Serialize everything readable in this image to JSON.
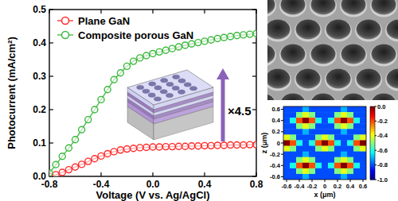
{
  "chart_data": [
    {
      "type": "line",
      "x_label": "Voltage (V vs. Ag/AgCl)",
      "y_label": "Photocurrent (mA/cm²)",
      "x": [
        -0.8,
        -0.75,
        -0.7,
        -0.65,
        -0.6,
        -0.55,
        -0.5,
        -0.45,
        -0.4,
        -0.35,
        -0.3,
        -0.25,
        -0.2,
        -0.15,
        -0.1,
        -0.05,
        0,
        0.05,
        0.1,
        0.15,
        0.2,
        0.25,
        0.3,
        0.35,
        0.4,
        0.45,
        0.5,
        0.55,
        0.6,
        0.65,
        0.7,
        0.75,
        0.8
      ],
      "series": [
        {
          "name": "Plane GaN",
          "color": "#ff2a2a",
          "marker": "circle",
          "line_style": "solid",
          "values": [
            0.0,
            0.005,
            0.012,
            0.02,
            0.028,
            0.036,
            0.045,
            0.053,
            0.061,
            0.068,
            0.074,
            0.079,
            0.082,
            0.084,
            0.086,
            0.087,
            0.088,
            0.088,
            0.089,
            0.089,
            0.09,
            0.09,
            0.091,
            0.091,
            0.092,
            0.092,
            0.093,
            0.093,
            0.094,
            0.094,
            0.094,
            0.095,
            0.095
          ]
        },
        {
          "name": "Composite porous GaN",
          "color": "#3cb83c",
          "marker": "circle",
          "line_style": "solid",
          "values": [
            0.01,
            0.035,
            0.06,
            0.085,
            0.11,
            0.14,
            0.17,
            0.2,
            0.23,
            0.26,
            0.29,
            0.31,
            0.33,
            0.345,
            0.355,
            0.362,
            0.368,
            0.373,
            0.378,
            0.383,
            0.388,
            0.393,
            0.397,
            0.401,
            0.405,
            0.409,
            0.413,
            0.416,
            0.419,
            0.422,
            0.424,
            0.426,
            0.428
          ]
        }
      ],
      "xlim": [
        -0.8,
        0.8
      ],
      "ylim": [
        0,
        0.5
      ],
      "xticks": [
        -0.8,
        -0.4,
        {
          "value": 0,
          "label": "0.0"
        },
        0.4,
        0.8
      ],
      "yticks": [
        {
          "value": 0,
          "label": "0.0"
        },
        0.1,
        0.2,
        0.3,
        0.4,
        0.5
      ],
      "grid": false,
      "legend": "upper left",
      "annotation": "×4.5"
    },
    {
      "type": "heatmap",
      "x_label": "x (μm)",
      "y_label": "z (μm)",
      "x": [
        -0.6,
        -0.5,
        -0.4,
        -0.3,
        -0.2,
        -0.1,
        0,
        0.1,
        0.2,
        0.3,
        0.4,
        0.5,
        0.6
      ],
      "y": [
        0.6,
        0.5,
        0.4,
        0.3,
        0.2,
        0.1,
        0,
        -0.1,
        -0.2,
        -0.3,
        -0.4,
        -0.5,
        -0.6
      ],
      "values": [
        [
          -0.8,
          -0.8,
          -0.8,
          -0.7,
          -0.8,
          -0.8,
          -0.8,
          -0.8,
          -0.8,
          -0.7,
          -0.8,
          -0.8,
          -0.8
        ],
        [
          -0.8,
          -0.8,
          -0.5,
          -0.4,
          -0.5,
          -0.8,
          -0.8,
          -0.8,
          -0.5,
          -0.4,
          -0.5,
          -0.8,
          -0.8
        ],
        [
          -0.8,
          -0.6,
          -0.2,
          0,
          -0.2,
          -0.6,
          -0.8,
          -0.6,
          -0.2,
          0,
          -0.2,
          -0.6,
          -0.8
        ],
        [
          -0.8,
          -0.8,
          -0.5,
          -0.4,
          -0.5,
          -0.8,
          -0.8,
          -0.8,
          -0.5,
          -0.4,
          -0.5,
          -0.8,
          -0.8
        ],
        [
          -0.8,
          -0.8,
          -0.8,
          -0.7,
          -0.8,
          -0.8,
          -0.8,
          -0.8,
          -0.8,
          -0.7,
          -0.8,
          -0.8,
          -0.8
        ],
        [
          -0.4,
          -0.5,
          -0.8,
          -0.8,
          -0.8,
          -0.5,
          -0.4,
          -0.5,
          -0.8,
          -0.8,
          -0.8,
          -0.5,
          -0.4
        ],
        [
          0,
          -0.2,
          -0.6,
          -0.8,
          -0.6,
          -0.2,
          0,
          -0.2,
          -0.6,
          -0.8,
          -0.6,
          -0.2,
          0
        ],
        [
          -0.4,
          -0.5,
          -0.8,
          -0.8,
          -0.8,
          -0.5,
          -0.4,
          -0.5,
          -0.8,
          -0.8,
          -0.8,
          -0.5,
          -0.4
        ],
        [
          -0.8,
          -0.8,
          -0.8,
          -0.7,
          -0.8,
          -0.8,
          -0.8,
          -0.8,
          -0.8,
          -0.7,
          -0.8,
          -0.8,
          -0.8
        ],
        [
          -0.8,
          -0.8,
          -0.5,
          -0.4,
          -0.5,
          -0.8,
          -0.8,
          -0.8,
          -0.5,
          -0.4,
          -0.5,
          -0.8,
          -0.8
        ],
        [
          -0.8,
          -0.6,
          -0.2,
          0,
          -0.2,
          -0.6,
          -0.8,
          -0.6,
          -0.2,
          0,
          -0.2,
          -0.6,
          -0.8
        ],
        [
          -0.8,
          -0.8,
          -0.5,
          -0.4,
          -0.5,
          -0.8,
          -0.8,
          -0.8,
          -0.5,
          -0.4,
          -0.5,
          -0.8,
          -0.8
        ],
        [
          -0.8,
          -0.8,
          -0.8,
          -0.7,
          -0.8,
          -0.8,
          -0.8,
          -0.8,
          -0.8,
          -0.7,
          -0.8,
          -0.8,
          -0.8
        ]
      ],
      "xlim": [
        -0.65,
        0.65
      ],
      "ylim": [
        -0.65,
        0.65
      ],
      "xticks": [
        -0.6,
        -0.4,
        -0.2,
        0,
        0.2,
        0.4,
        0.6
      ],
      "yticks": [
        -0.6,
        -0.4,
        -0.2,
        0,
        0.2,
        0.4,
        0.6
      ],
      "color_range": [
        -1,
        0
      ],
      "color_ticks": [
        {
          "value": 0,
          "label": "0.0"
        },
        -0.2,
        -0.4,
        -0.6,
        -0.8,
        {
          "value": -1,
          "label": "-1.0"
        }
      ]
    }
  ]
}
